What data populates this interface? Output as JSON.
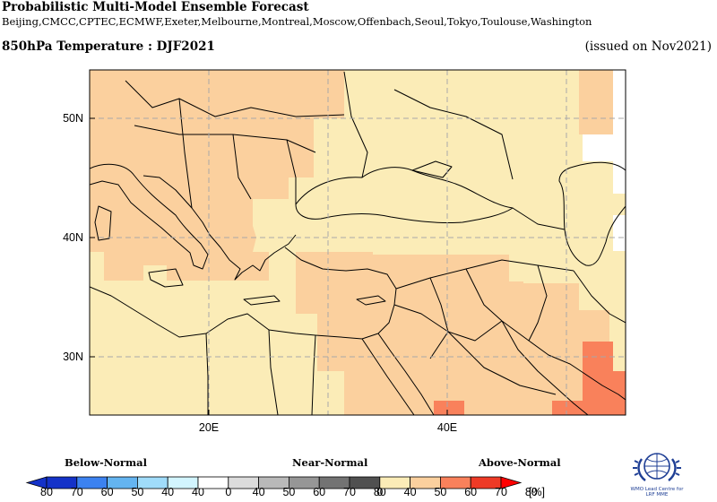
{
  "header": {
    "title": "Probabilistic Multi-Model Ensemble Forecast",
    "centres": "Beijing,CMCC,CPTEC,ECMWF,Exeter,Melbourne,Montreal,Moscow,Offenbach,Seoul,Tokyo,Toulouse,Washington",
    "variable": "850hPa Temperature : DJF2021",
    "issued": "(issued on Nov2021)"
  },
  "map": {
    "region": "Mediterranean, Middle East and Caspian",
    "lon_range": [
      10,
      55
    ],
    "lat_range": [
      25,
      55
    ],
    "lat_labels": [
      "50N",
      "40N",
      "30N"
    ],
    "lon_labels": [
      "20E",
      "40E"
    ],
    "gridlines": true,
    "categories": [
      {
        "name": "above-normal-40-50",
        "color": "#fbecb7"
      },
      {
        "name": "above-normal-50-60",
        "color": "#fbd09e"
      },
      {
        "name": "above-normal-60-70",
        "color": "#f9815b"
      },
      {
        "name": "above-normal-70-80",
        "color": "#ee3a26"
      },
      {
        "name": "no-signal",
        "color": "#ffffff"
      }
    ]
  },
  "legend": {
    "below_label": "Below-Normal",
    "near_label": "Near-Normal",
    "above_label": "Above-Normal",
    "unit": "[%]",
    "below": {
      "labels": [
        "80",
        "70",
        "60",
        "50",
        "40"
      ],
      "colors": [
        "#1432c8",
        "#3c82f0",
        "#64b4f0",
        "#a0dcfa",
        "#d2f5ff"
      ]
    },
    "near": {
      "labels": [
        "0",
        "40",
        "50",
        "60",
        "70",
        "80"
      ],
      "colors": [
        "#ffffff",
        "#dcdcdc",
        "#b9b9b9",
        "#969696",
        "#737373",
        "#505050"
      ]
    },
    "above": {
      "labels": [
        "0",
        "40",
        "50",
        "60",
        "70",
        "80"
      ],
      "colors": [
        "#ffffff",
        "#fbecb7",
        "#fbd09e",
        "#f9815b",
        "#ee3a26",
        "#ff0000"
      ]
    }
  },
  "logo": {
    "text_line1": "WMO Lead Centre for",
    "text_line2": "LRF MME"
  }
}
